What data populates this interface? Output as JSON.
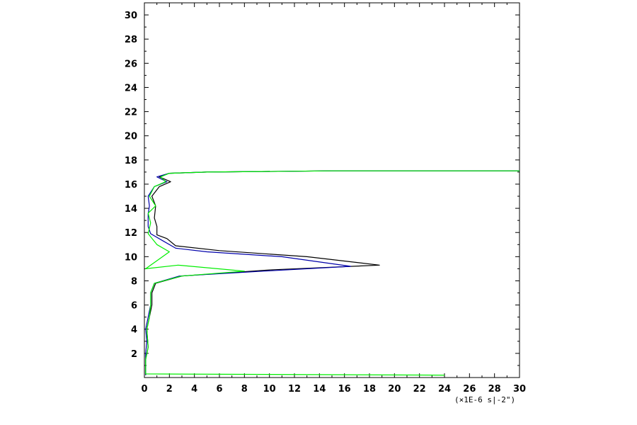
{
  "chart_data": {
    "type": "line",
    "title": "",
    "xlabel": "",
    "ylabel": "",
    "x_unit_label": "(×1E-6 s|-2\")",
    "xlim": [
      0,
      30
    ],
    "ylim": [
      0,
      31
    ],
    "x_ticks": [
      0,
      2,
      4,
      6,
      8,
      10,
      12,
      14,
      16,
      18,
      20,
      22,
      24,
      26,
      28,
      30
    ],
    "y_ticks": [
      2,
      4,
      6,
      8,
      10,
      12,
      14,
      16,
      18,
      20,
      22,
      24,
      26,
      28,
      30
    ],
    "grid": false,
    "legend": "none",
    "series": [
      {
        "color": "#000000",
        "points": [
          [
            0.1,
            0.2
          ],
          [
            0.1,
            1.5
          ],
          [
            0.3,
            2.5
          ],
          [
            0.2,
            4.0
          ],
          [
            0.4,
            5.0
          ],
          [
            0.6,
            6.0
          ],
          [
            0.6,
            7.0
          ],
          [
            0.9,
            7.8
          ],
          [
            3.0,
            8.4
          ],
          [
            10.0,
            8.9
          ],
          [
            18.8,
            9.3
          ],
          [
            13.0,
            10.0
          ],
          [
            6.0,
            10.5
          ],
          [
            2.5,
            10.9
          ],
          [
            1.8,
            11.5
          ],
          [
            1.0,
            11.8
          ],
          [
            1.0,
            12.5
          ],
          [
            0.8,
            13.2
          ],
          [
            0.9,
            14.2
          ],
          [
            0.6,
            15.0
          ],
          [
            1.2,
            15.8
          ],
          [
            2.1,
            16.2
          ],
          [
            1.2,
            16.6
          ],
          [
            2.0,
            16.9
          ],
          [
            5.0,
            17.0
          ],
          [
            15.0,
            17.1
          ],
          [
            30.0,
            17.1
          ]
        ]
      },
      {
        "color": "#0000aa",
        "points": [
          [
            0.1,
            0.2
          ],
          [
            0.1,
            2.0
          ],
          [
            0.2,
            3.0
          ],
          [
            0.1,
            4.0
          ],
          [
            0.3,
            5.0
          ],
          [
            0.5,
            6.0
          ],
          [
            0.5,
            7.0
          ],
          [
            0.8,
            7.8
          ],
          [
            2.8,
            8.4
          ],
          [
            9.5,
            8.8
          ],
          [
            16.5,
            9.2
          ],
          [
            11.0,
            10.0
          ],
          [
            5.0,
            10.4
          ],
          [
            2.5,
            10.7
          ],
          [
            1.5,
            11.3
          ],
          [
            0.5,
            11.9
          ],
          [
            0.3,
            12.5
          ],
          [
            0.3,
            13.5
          ],
          [
            0.4,
            14.2
          ],
          [
            0.3,
            15.0
          ],
          [
            0.8,
            15.8
          ],
          [
            1.8,
            16.2
          ],
          [
            1.0,
            16.6
          ],
          [
            2.0,
            16.9
          ],
          [
            5.0,
            17.0
          ],
          [
            15.0,
            17.1
          ],
          [
            30.0,
            17.1
          ]
        ]
      },
      {
        "color": "#00ee00",
        "points": [
          [
            24.0,
            0.2
          ],
          [
            0.1,
            0.3
          ],
          [
            0.1,
            1.5
          ],
          [
            0.3,
            2.5
          ],
          [
            0.2,
            4.0
          ],
          [
            0.4,
            5.0
          ],
          [
            0.5,
            6.0
          ],
          [
            0.5,
            7.0
          ],
          [
            0.8,
            7.8
          ],
          [
            3.0,
            8.4
          ],
          [
            8.0,
            8.8
          ],
          [
            2.7,
            9.3
          ],
          [
            0.1,
            9.0
          ],
          [
            2.0,
            10.4
          ],
          [
            1.0,
            11.0
          ],
          [
            0.3,
            11.9
          ],
          [
            0.5,
            12.8
          ],
          [
            0.3,
            13.6
          ],
          [
            0.9,
            14.2
          ],
          [
            0.4,
            15.0
          ],
          [
            0.8,
            15.8
          ],
          [
            1.7,
            16.2
          ],
          [
            1.3,
            16.6
          ],
          [
            2.0,
            16.9
          ],
          [
            5.0,
            17.0
          ],
          [
            15.0,
            17.1
          ],
          [
            30.0,
            17.1
          ]
        ]
      }
    ]
  }
}
